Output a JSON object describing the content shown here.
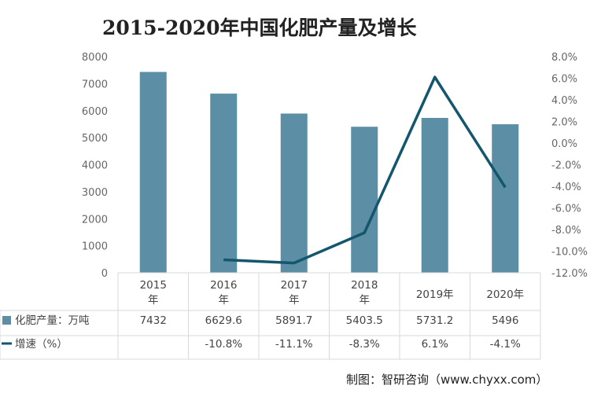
{
  "chart_data": {
    "type": "bar+line",
    "title": "2015-2020年中国化肥产量及增长",
    "categories": [
      "2015\n年",
      "2016\n年",
      "2017\n年",
      "2018\n年",
      "2019年",
      "2020年"
    ],
    "series": [
      {
        "name": "化肥产量：万吨",
        "type": "bar",
        "axis": "left",
        "values": [
          7432,
          6629.6,
          5891.7,
          5403.5,
          5731.2,
          5496
        ],
        "labels": [
          "7432",
          "6629.6",
          "5891.7",
          "5403.5",
          "5731.2",
          "5496"
        ]
      },
      {
        "name": "增速（%）",
        "type": "line",
        "axis": "right",
        "values": [
          null,
          -10.8,
          -11.1,
          -8.3,
          6.1,
          -4.1
        ],
        "labels": [
          "",
          "-10.8%",
          "-11.1%",
          "-8.3%",
          "6.1%",
          "-4.1%"
        ]
      }
    ],
    "left_axis": {
      "min": 0,
      "max": 8000,
      "step": 1000,
      "ticks": [
        "0",
        "1000",
        "2000",
        "3000",
        "4000",
        "5000",
        "6000",
        "7000",
        "8000"
      ]
    },
    "right_axis": {
      "min": -12,
      "max": 8,
      "step": 2,
      "ticks": [
        "-12.0%",
        "-10.0%",
        "-8.0%",
        "-6.0%",
        "-4.0%",
        "-2.0%",
        "0.0%",
        "2.0%",
        "4.0%",
        "6.0%",
        "8.0%"
      ]
    },
    "grid": false,
    "legend": "data-table"
  },
  "colors": {
    "bar": "#5c8fa6",
    "line": "#14566e",
    "grid": "#d9d9d9"
  },
  "source": "制图：智研咨询（www.chyxx.com）"
}
